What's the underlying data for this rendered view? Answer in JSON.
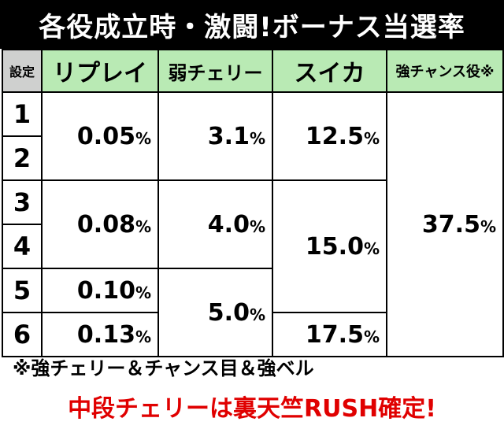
{
  "title": "各役成立時・激闘!ボーナス当選率",
  "headers": {
    "setting": "設定",
    "replay": "リプレイ",
    "weak_cherry": "弱チェリー",
    "suika": "スイカ",
    "strong_chance": "強チャンス役※"
  },
  "settings": [
    "1",
    "2",
    "3",
    "4",
    "5",
    "6"
  ],
  "values": {
    "replay_1_2": "0.05",
    "replay_3_4": "0.08",
    "replay_5": "0.10",
    "replay_6": "0.13",
    "weak_cherry_1_2": "3.1",
    "weak_cherry_3_4": "4.0",
    "weak_cherry_5_6": "5.0",
    "suika_1_2": "12.5",
    "suika_3_5": "15.0",
    "suika_6": "17.5",
    "strong_chance_all": "37.5",
    "percent": "%"
  },
  "footnote": "※強チェリー＆チャンス目＆強ベル",
  "highlight_note": "中段チェリーは裏天竺RUSH確定!",
  "colors": {
    "title_bg": "#000000",
    "header_bg": "#b9eab4",
    "setting_header_bg": "#cfd0cf",
    "highlight_text": "#e00000"
  }
}
